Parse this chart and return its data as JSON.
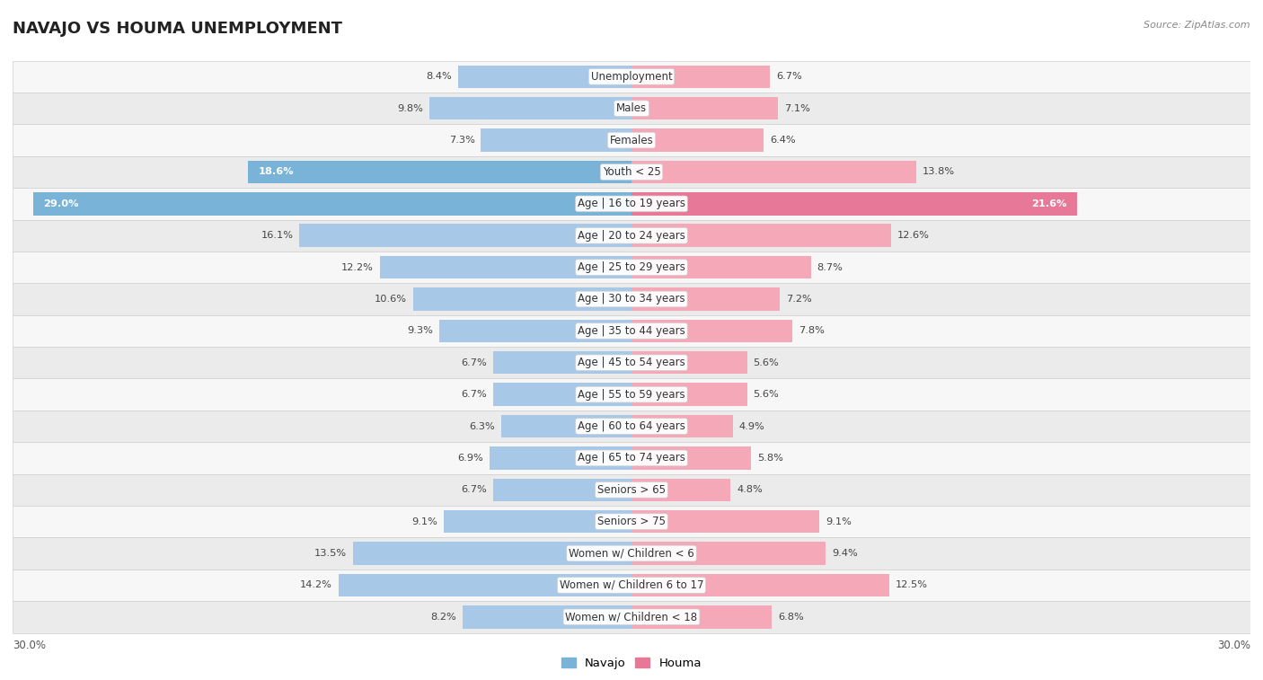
{
  "title": "NAVAJO VS HOUMA UNEMPLOYMENT",
  "source": "Source: ZipAtlas.com",
  "categories": [
    "Unemployment",
    "Males",
    "Females",
    "Youth < 25",
    "Age | 16 to 19 years",
    "Age | 20 to 24 years",
    "Age | 25 to 29 years",
    "Age | 30 to 34 years",
    "Age | 35 to 44 years",
    "Age | 45 to 54 years",
    "Age | 55 to 59 years",
    "Age | 60 to 64 years",
    "Age | 65 to 74 years",
    "Seniors > 65",
    "Seniors > 75",
    "Women w/ Children < 6",
    "Women w/ Children 6 to 17",
    "Women w/ Children < 18"
  ],
  "navajo": [
    8.4,
    9.8,
    7.3,
    18.6,
    29.0,
    16.1,
    12.2,
    10.6,
    9.3,
    6.7,
    6.7,
    6.3,
    6.9,
    6.7,
    9.1,
    13.5,
    14.2,
    8.2
  ],
  "houma": [
    6.7,
    7.1,
    6.4,
    13.8,
    21.6,
    12.6,
    8.7,
    7.2,
    7.8,
    5.6,
    5.6,
    4.9,
    5.8,
    4.8,
    9.1,
    9.4,
    12.5,
    6.8
  ],
  "navajo_color_normal": "#a8c8e8",
  "navajo_color_highlight": "#7ab3d8",
  "houma_color_normal": "#f4a8b8",
  "houma_color_highlight": "#e87898",
  "row_color_odd": "#f7f7f7",
  "row_color_even": "#ebebeb",
  "row_border_color": "#d0d0d0",
  "max_val": 30.0,
  "axis_label_left": "30.0%",
  "axis_label_right": "30.0%",
  "legend_navajo": "Navajo",
  "legend_houma": "Houma",
  "legend_navajo_color": "#7ab3d8",
  "legend_houma_color": "#e87898",
  "label_fontsize": 8.5,
  "value_fontsize": 8.2,
  "title_fontsize": 13,
  "source_fontsize": 8
}
